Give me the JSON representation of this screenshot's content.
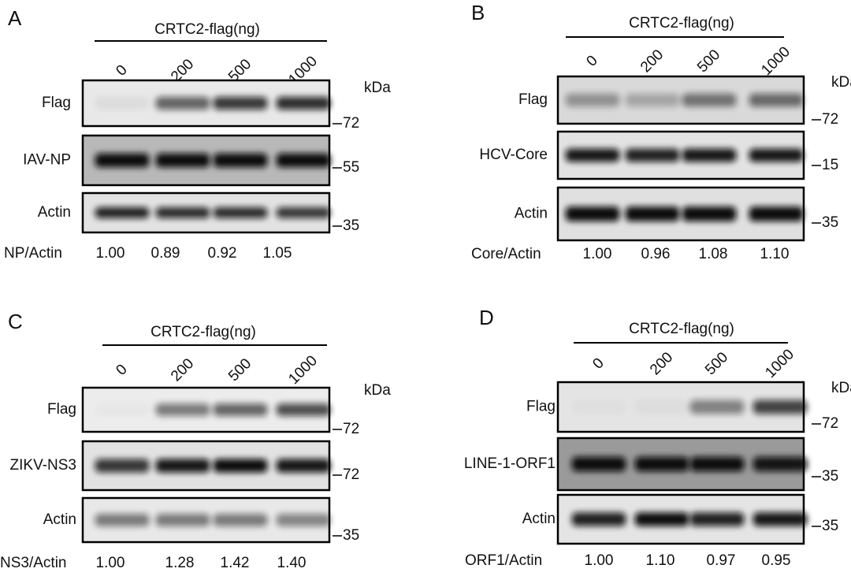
{
  "panels": [
    {
      "label": "A",
      "header": "CRTC2-flag(ng)",
      "lanes": [
        "0",
        "200",
        "500",
        "1000"
      ],
      "unit": "kDa",
      "blots": [
        {
          "label": "Flag",
          "marker": "72"
        },
        {
          "label": "IAV-NP",
          "marker": "55"
        },
        {
          "label": "Actin",
          "marker": "35"
        }
      ],
      "ratio": {
        "label": "NP/Actin",
        "values": [
          "1.00",
          "0.89",
          "0.92",
          "1.05"
        ]
      }
    },
    {
      "label": "B",
      "header": "CRTC2-flag(ng)",
      "lanes": [
        "0",
        "200",
        "500",
        "1000"
      ],
      "unit": "kDa",
      "blots": [
        {
          "label": "Flag",
          "marker": "72"
        },
        {
          "label": "HCV-Core",
          "marker": "15"
        },
        {
          "label": "Actin",
          "marker": "35"
        }
      ],
      "ratio": {
        "label": "Core/Actin",
        "values": [
          "1.00",
          "0.96",
          "1.08",
          "1.10"
        ]
      }
    },
    {
      "label": "C",
      "header": "CRTC2-flag(ng)",
      "lanes": [
        "0",
        "200",
        "500",
        "1000"
      ],
      "unit": "kDa",
      "blots": [
        {
          "label": "Flag",
          "marker": "72"
        },
        {
          "label": "ZIKV-NS3",
          "marker": "72"
        },
        {
          "label": "Actin",
          "marker": "35"
        }
      ],
      "ratio": {
        "label": "NS3/Actin",
        "values": [
          "1.00",
          "1.28",
          "1.42",
          "1.40"
        ]
      }
    },
    {
      "label": "D",
      "header": "CRTC2-flag(ng)",
      "lanes": [
        "0",
        "200",
        "500",
        "1000"
      ],
      "unit": "kDa",
      "blots": [
        {
          "label": "Flag",
          "marker": "72"
        },
        {
          "label": "LINE-1-ORF1",
          "marker": "35"
        },
        {
          "label": "Actin",
          "marker": "35"
        }
      ],
      "ratio": {
        "label": "ORF1/Actin",
        "values": [
          "1.00",
          "1.10",
          "0.97",
          "0.95"
        ]
      }
    }
  ]
}
